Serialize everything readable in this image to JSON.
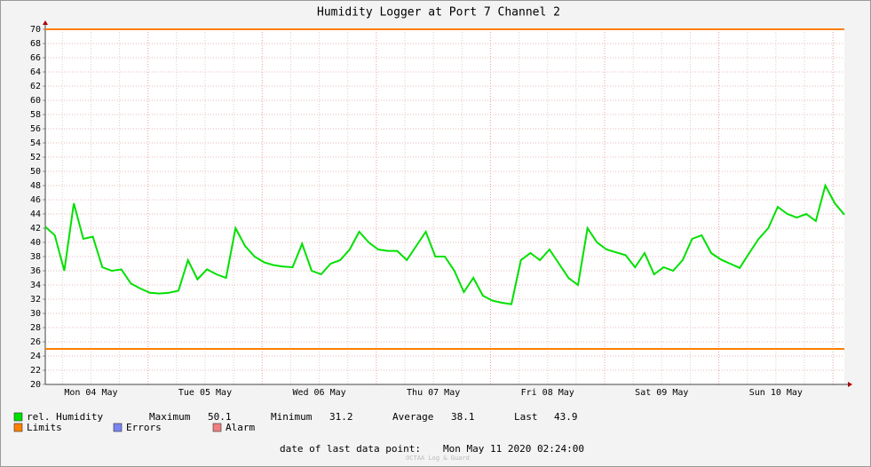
{
  "chart_data": {
    "type": "line",
    "title": "Humidity Logger at Port 7 Channel 2",
    "x_labels": [
      "Mon 04 May",
      "Tue 05 May",
      "Wed 06 May",
      "Thu 07 May",
      "Fri 08 May",
      "Sat 09 May",
      "Sun 10 May"
    ],
    "series": [
      {
        "name": "rel. Humidity",
        "color": "#00e000",
        "values": [
          42.2,
          41.0,
          36.0,
          45.5,
          40.5,
          40.8,
          36.5,
          36.0,
          36.2,
          34.2,
          33.5,
          32.9,
          32.8,
          32.9,
          33.2,
          37.5,
          34.8,
          36.2,
          35.5,
          35.0,
          42.0,
          39.5,
          38.0,
          37.2,
          36.8,
          36.6,
          36.5,
          39.8,
          36.0,
          35.5,
          37.0,
          37.5,
          39.0,
          41.5,
          40.0,
          39.0,
          38.8,
          38.8,
          37.5,
          39.5,
          41.5,
          38.0,
          38.0,
          36.0,
          33.0,
          35.0,
          32.5,
          31.8,
          31.5,
          31.3,
          37.5,
          38.5,
          37.5,
          39.0,
          37.0,
          35.0,
          34.0,
          42.0,
          40.0,
          39.0,
          38.6,
          38.2,
          36.5,
          38.5,
          35.5,
          36.5,
          36.0,
          37.5,
          40.5,
          41.0,
          38.5,
          37.6,
          37.0,
          36.4,
          38.5,
          40.5,
          42.0,
          45.0,
          44.0,
          43.5,
          44.0,
          43.0,
          48.0,
          45.5,
          43.9
        ]
      }
    ],
    "limits": {
      "name": "Limits",
      "color": "#ff7f00",
      "values": [
        70,
        25
      ]
    },
    "legend_extra": [
      {
        "name": "Errors",
        "color": "#7a86f0"
      },
      {
        "name": "Alarm",
        "color": "#f08080"
      }
    ],
    "stats": [
      {
        "label": "Maximum",
        "value": 50.1
      },
      {
        "label": "Minimum",
        "value": 31.2
      },
      {
        "label": "Average",
        "value": 38.1
      },
      {
        "label": "Last",
        "value": 43.9
      }
    ],
    "last_point_label": "date of last data point:",
    "last_point": "Mon May 11 2020 02:24:00",
    "footer": "OCTAA Log & Guard",
    "ylim": [
      20,
      70
    ],
    "yticks": [
      20,
      22,
      24,
      26,
      28,
      30,
      32,
      34,
      36,
      38,
      40,
      42,
      44,
      46,
      48,
      50,
      52,
      54,
      56,
      58,
      60,
      62,
      64,
      66,
      68,
      70
    ],
    "grid": true
  }
}
